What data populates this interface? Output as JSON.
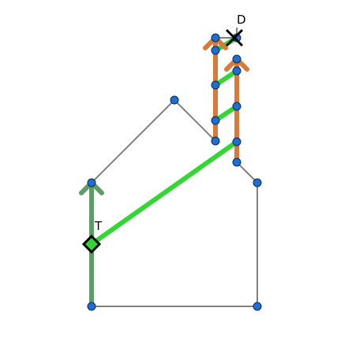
{
  "diagram": {
    "title": "",
    "labels": {
      "target": "T",
      "destination": "D"
    },
    "colors": {
      "outline": "#808080",
      "vertex_fill": "#1f6fd1",
      "vertex_stroke": "#0a2a5a",
      "ladder_rail": "#d97a3a",
      "rung": "#33d633",
      "start_arrow": "#5c9e62",
      "marker": "#000000"
    },
    "icons": {
      "target_marker": "diamond-marker-icon",
      "destination_marker": "cross-marker-icon"
    }
  }
}
